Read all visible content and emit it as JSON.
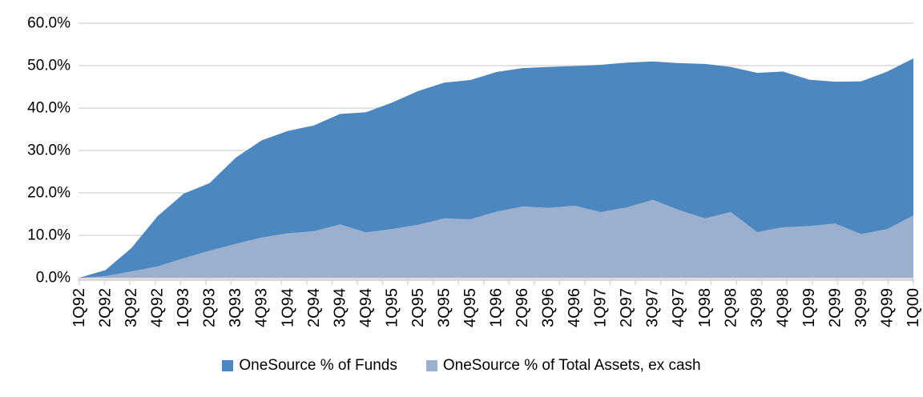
{
  "chart_data": {
    "type": "area",
    "categories": [
      "1Q92",
      "2Q92",
      "3Q92",
      "4Q92",
      "1Q93",
      "2Q93",
      "3Q93",
      "4Q93",
      "1Q94",
      "2Q94",
      "3Q94",
      "4Q94",
      "1Q95",
      "2Q95",
      "3Q95",
      "4Q95",
      "1Q96",
      "2Q96",
      "3Q96",
      "4Q96",
      "1Q97",
      "2Q97",
      "3Q97",
      "4Q97",
      "1Q98",
      "2Q98",
      "3Q98",
      "4Q98",
      "1Q99",
      "2Q99",
      "3Q99",
      "4Q99",
      "1Q00"
    ],
    "series": [
      {
        "name": "OneSource % of Funds",
        "color": "#4d87bf",
        "values": [
          0,
          1.8,
          7.0,
          14.5,
          19.8,
          22.3,
          28.3,
          32.4,
          34.6,
          35.9,
          38.6,
          39.0,
          41.3,
          44.0,
          46.0,
          46.6,
          48.5,
          49.4,
          49.7,
          49.9,
          50.2,
          50.7,
          51.0,
          50.6,
          50.4,
          49.7,
          48.3,
          48.6,
          46.7,
          46.2,
          46.3,
          48.6,
          51.7
        ]
      },
      {
        "name": "OneSource % of Total Assets, ex cash",
        "color": "#9bb0ce",
        "values": [
          0,
          0.4,
          1.5,
          2.7,
          4.6,
          6.4,
          8.0,
          9.5,
          10.5,
          11.0,
          12.6,
          10.7,
          11.5,
          12.5,
          14.0,
          13.8,
          15.6,
          16.8,
          16.5,
          17.0,
          15.5,
          16.6,
          18.4,
          16.0,
          14.0,
          15.5,
          10.8,
          11.9,
          12.2,
          12.8,
          10.3,
          11.5,
          14.7
        ]
      }
    ],
    "title": "",
    "xlabel": "",
    "ylabel": "",
    "ylim": [
      0,
      60
    ],
    "yticks": [
      0,
      10,
      20,
      30,
      40,
      50,
      60
    ],
    "ytick_labels": [
      "0.0%",
      "10.0%",
      "20.0%",
      "30.0%",
      "40.0%",
      "50.0%",
      "60.0%"
    ],
    "grid": true,
    "legend_position": "bottom",
    "colors": {
      "gridline": "#d9d9d9",
      "axis": "#d9d9d9",
      "text": "#000000",
      "background": "#ffffff"
    }
  }
}
